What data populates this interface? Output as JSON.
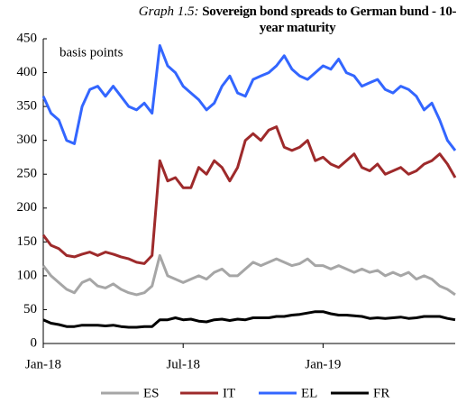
{
  "chart_data": {
    "type": "line",
    "title_number": "Graph 1.5:",
    "title": "Sovereign bond spreads to German bund - 10-year maturity",
    "annotation": "basis points",
    "categories": [
      "Jan-18",
      null,
      null,
      null,
      null,
      null,
      null,
      null,
      null,
      null,
      null,
      null,
      null,
      null,
      null,
      null,
      null,
      null,
      "Jul-18",
      null,
      null,
      null,
      null,
      null,
      null,
      null,
      null,
      null,
      null,
      null,
      null,
      null,
      null,
      null,
      null,
      null,
      "Jan-19",
      null,
      null,
      null,
      null,
      null,
      null,
      null,
      null,
      null,
      null,
      null,
      null,
      null,
      null,
      null,
      null,
      null
    ],
    "ylim": [
      0,
      450
    ],
    "yticks": [
      0,
      50,
      100,
      150,
      200,
      250,
      300,
      350,
      400,
      450
    ],
    "legend": "bottom",
    "series": [
      {
        "name": "ES",
        "color": "#a6a6a6",
        "values": [
          115,
          100,
          90,
          80,
          75,
          90,
          95,
          85,
          82,
          88,
          80,
          75,
          72,
          75,
          85,
          130,
          100,
          95,
          90,
          95,
          100,
          95,
          105,
          110,
          100,
          100,
          110,
          120,
          115,
          120,
          125,
          120,
          115,
          118,
          125,
          115,
          115,
          110,
          115,
          110,
          105,
          110,
          105,
          108,
          100,
          105,
          100,
          105,
          95,
          100,
          95,
          85,
          80,
          72
        ]
      },
      {
        "name": "IT",
        "color": "#9e2a2b",
        "values": [
          160,
          145,
          140,
          130,
          128,
          132,
          135,
          130,
          135,
          132,
          128,
          125,
          120,
          118,
          130,
          270,
          240,
          245,
          230,
          230,
          260,
          250,
          270,
          260,
          240,
          260,
          300,
          310,
          300,
          315,
          320,
          290,
          285,
          290,
          300,
          270,
          275,
          265,
          260,
          270,
          280,
          260,
          255,
          265,
          250,
          255,
          260,
          250,
          255,
          265,
          270,
          280,
          265,
          245
        ]
      },
      {
        "name": "EL",
        "color": "#3366ff",
        "values": [
          365,
          340,
          330,
          300,
          295,
          350,
          375,
          380,
          365,
          380,
          365,
          350,
          345,
          355,
          340,
          440,
          410,
          400,
          380,
          370,
          360,
          345,
          355,
          380,
          395,
          370,
          365,
          390,
          395,
          400,
          410,
          425,
          405,
          395,
          390,
          400,
          410,
          405,
          420,
          400,
          395,
          380,
          385,
          390,
          375,
          370,
          380,
          375,
          365,
          345,
          355,
          330,
          300,
          285
        ]
      },
      {
        "name": "FR",
        "color": "#000000",
        "values": [
          35,
          30,
          28,
          25,
          25,
          27,
          27,
          27,
          26,
          27,
          25,
          24,
          24,
          25,
          25,
          35,
          35,
          38,
          35,
          36,
          33,
          32,
          35,
          36,
          34,
          36,
          35,
          38,
          38,
          38,
          40,
          40,
          42,
          43,
          45,
          47,
          47,
          44,
          42,
          42,
          41,
          40,
          37,
          38,
          37,
          38,
          39,
          37,
          38,
          40,
          40,
          40,
          37,
          35
        ]
      }
    ]
  }
}
